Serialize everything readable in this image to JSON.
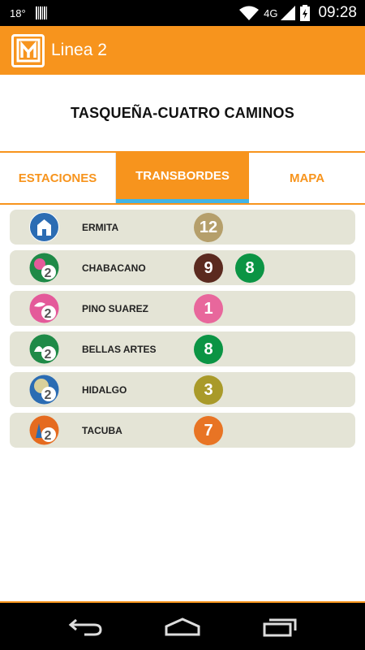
{
  "status_bar": {
    "temperature": "18°",
    "network": "4G",
    "time": "09:28",
    "icons": [
      "barcode-icon",
      "wifi-icon",
      "signal-icon",
      "battery-icon"
    ]
  },
  "app_bar": {
    "title": "Linea 2",
    "logo_icon": "metro-logo-icon"
  },
  "route": {
    "title": "TASQUEÑA-CUATRO CAMINOS"
  },
  "tabs": [
    {
      "label": "ESTACIONES",
      "selected": false
    },
    {
      "label": "TRANSBORDES",
      "selected": true
    },
    {
      "label": "MAPA",
      "selected": false
    }
  ],
  "stations": [
    {
      "name": "ERMITA",
      "icon": "ermita-station-icon",
      "icon_color": "#2b6cb3",
      "lines": [
        {
          "label": "12",
          "color": "#b59f6b"
        }
      ]
    },
    {
      "name": "CHABACANO",
      "icon": "chabacano-station-icon",
      "icon_color": "#1f8a47",
      "lines": [
        {
          "label": "9",
          "color": "#5b2a1f"
        },
        {
          "label": "8",
          "color": "#0b9444"
        }
      ]
    },
    {
      "name": "PINO SUAREZ",
      "icon": "pino-suarez-station-icon",
      "icon_color": "#e45a9a",
      "lines": [
        {
          "label": "1",
          "color": "#e8679c"
        }
      ]
    },
    {
      "name": "BELLAS ARTES",
      "icon": "bellas-artes-station-icon",
      "icon_color": "#1f8a47",
      "lines": [
        {
          "label": "8",
          "color": "#0b9444"
        }
      ]
    },
    {
      "name": "HIDALGO",
      "icon": "hidalgo-station-icon",
      "icon_color": "#2b6cb3",
      "lines": [
        {
          "label": "3",
          "color": "#a99a2a"
        }
      ]
    },
    {
      "name": "TACUBA",
      "icon": "tacuba-station-icon",
      "icon_color": "#e56b1f",
      "lines": [
        {
          "label": "7",
          "color": "#e87424"
        }
      ]
    }
  ],
  "colors": {
    "accent": "#f7941d",
    "tab_indicator": "#41b4e6",
    "row_background": "#e4e4d6"
  },
  "nav_bar": {
    "icons": [
      "back-icon",
      "home-icon",
      "recent-apps-icon"
    ]
  }
}
